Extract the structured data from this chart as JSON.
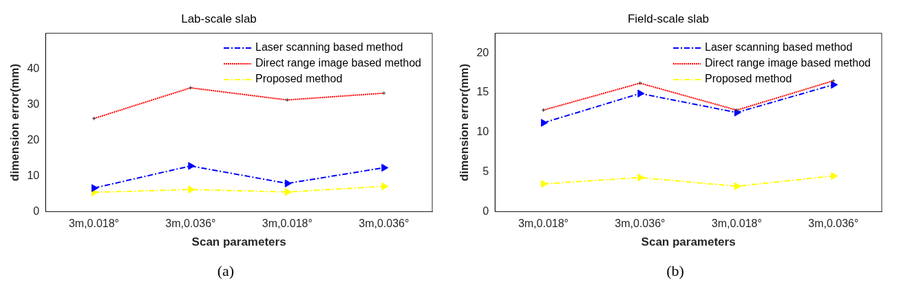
{
  "chart_data": [
    {
      "type": "line",
      "title": "Lab-scale slab",
      "xlabel": "Scan parameters",
      "ylabel": "dimension error(mm)",
      "categories": [
        "3m,0.018°",
        "3m,0.036°",
        "3m,0.018°",
        "3m,0.036°"
      ],
      "ylim": [
        0,
        50
      ],
      "yticks": [
        0,
        10,
        20,
        30,
        40
      ],
      "grid": false,
      "legend": "top right",
      "annotations": [
        "(a)"
      ],
      "series": [
        {
          "name": "Laser scanning based method",
          "color": "#0000ff",
          "values": [
            6.6,
            12.8,
            7.9,
            12.3
          ],
          "marker": "triangle",
          "line_style": "dashed"
        },
        {
          "name": "Direct range image based method",
          "color": "#ff0000",
          "values": [
            26.1,
            34.7,
            31.3,
            33.2
          ],
          "marker": "cross",
          "line_style": "dotted"
        },
        {
          "name": "Proposed method",
          "color": "#ffff00",
          "values": [
            5.4,
            6.2,
            5.5,
            7.1
          ],
          "marker": "triangle",
          "line_style": "dashed"
        }
      ]
    },
    {
      "type": "line",
      "title": "Field-scale slab",
      "xlabel": "Scan parameters",
      "ylabel": "dimension error(mm)",
      "categories": [
        "3m,0.018°",
        "3m,0.036°",
        "3m,0.018°",
        "3m,0.036°"
      ],
      "ylim": [
        0,
        22.5
      ],
      "yticks": [
        0,
        5,
        10,
        15,
        20
      ],
      "grid": false,
      "legend": "top right",
      "annotations": [
        "(b)"
      ],
      "series": [
        {
          "name": "Laser scanning based method",
          "color": "#0000ff",
          "values": [
            11.2,
            14.9,
            12.5,
            16.0
          ],
          "marker": "triangle",
          "line_style": "dashed"
        },
        {
          "name": "Direct range image based method",
          "color": "#ff0000",
          "values": [
            12.8,
            16.2,
            12.8,
            16.5
          ],
          "marker": "cross",
          "line_style": "dotted"
        },
        {
          "name": "Proposed method",
          "color": "#ffff00",
          "values": [
            3.5,
            4.3,
            3.2,
            4.5
          ],
          "marker": "triangle",
          "line_style": "dashed"
        }
      ]
    }
  ]
}
